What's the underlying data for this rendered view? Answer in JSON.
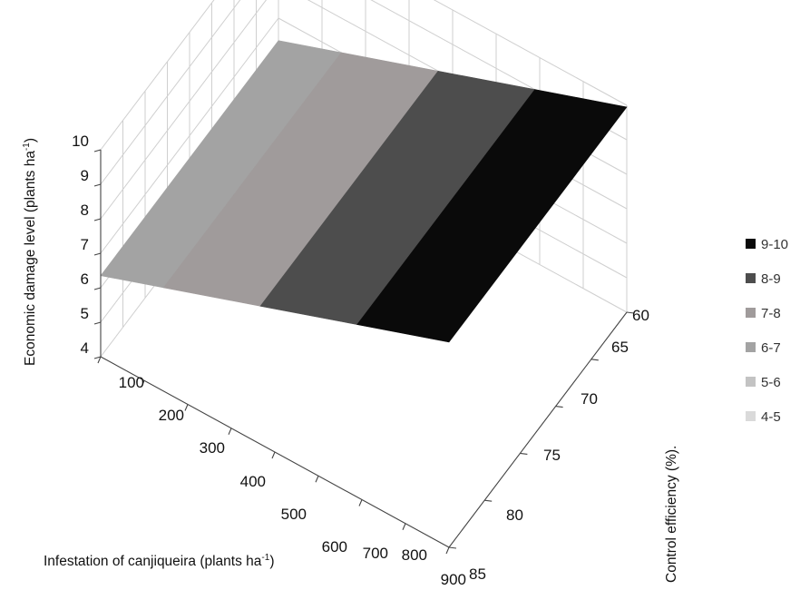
{
  "chart_data": {
    "type": "surface",
    "ylabel_main": "Economic damage level (plants ha",
    "ylabel_sup": "-1",
    "ylabel_close": ")",
    "xlabel_main": "Infestation of canjiqueira (plants ha",
    "xlabel_sup": "-1",
    "xlabel_close": ")",
    "zlabel": "Control efficiency (%).",
    "z_axis_ticks": [
      "4",
      "5",
      "6",
      "7",
      "8",
      "9",
      "10"
    ],
    "infestation_ticks": [
      "100",
      "200",
      "300",
      "400",
      "500",
      "600",
      "700",
      "800",
      "900"
    ],
    "efficiency_ticks": [
      "60",
      "65",
      "70",
      "75",
      "80",
      "85"
    ],
    "zlim": [
      4,
      10
    ],
    "grid": true,
    "legend_position": "right",
    "bands": [
      {
        "label": "9-10",
        "color": "#0a0a0a"
      },
      {
        "label": "8-9",
        "color": "#4d4d4d"
      },
      {
        "label": "7-8",
        "color": "#a09b9b"
      },
      {
        "label": "6-7",
        "color": "#a3a3a3"
      },
      {
        "label": "5-6",
        "color": "#c3c3c3"
      },
      {
        "label": "4-5",
        "color": "#dadada"
      }
    ],
    "surface_edge_values": {
      "infestation_100": 6.35,
      "infestation_900": 9.95
    }
  }
}
